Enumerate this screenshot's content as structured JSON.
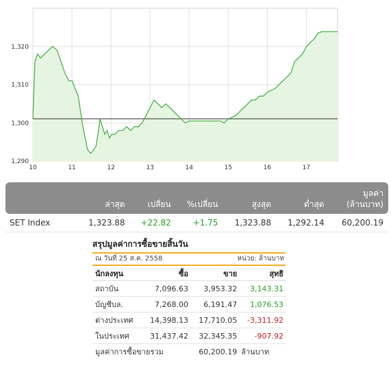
{
  "chart_data": {
    "type": "line",
    "series": [
      {
        "points": [
          [
            10.0,
            1301
          ],
          [
            10.05,
            1316
          ],
          [
            10.12,
            1318
          ],
          [
            10.2,
            1317
          ],
          [
            10.3,
            1318
          ],
          [
            10.4,
            1319
          ],
          [
            10.5,
            1320
          ],
          [
            10.62,
            1319
          ],
          [
            10.72,
            1316
          ],
          [
            10.82,
            1313
          ],
          [
            10.92,
            1311
          ],
          [
            11.0,
            1311
          ],
          [
            11.08,
            1309
          ],
          [
            11.16,
            1307
          ],
          [
            11.22,
            1303
          ],
          [
            11.28,
            1299
          ],
          [
            11.34,
            1296
          ],
          [
            11.4,
            1293
          ],
          [
            11.48,
            1292
          ],
          [
            11.56,
            1293
          ],
          [
            11.62,
            1294
          ],
          [
            11.68,
            1298
          ],
          [
            11.72,
            1301
          ],
          [
            11.78,
            1299
          ],
          [
            11.84,
            1297
          ],
          [
            11.9,
            1298
          ],
          [
            11.96,
            1296
          ],
          [
            12.02,
            1297
          ],
          [
            12.1,
            1297
          ],
          [
            12.2,
            1298
          ],
          [
            12.3,
            1298
          ],
          [
            12.4,
            1299
          ],
          [
            12.5,
            1298
          ],
          [
            12.6,
            1299
          ],
          [
            12.7,
            1299
          ],
          [
            12.8,
            1300
          ],
          [
            12.9,
            1302
          ],
          [
            13.0,
            1304
          ],
          [
            13.1,
            1306
          ],
          [
            13.2,
            1305
          ],
          [
            13.3,
            1304
          ],
          [
            13.4,
            1305
          ],
          [
            13.5,
            1304
          ],
          [
            13.6,
            1303
          ],
          [
            13.7,
            1302
          ],
          [
            13.8,
            1301
          ],
          [
            13.9,
            1300
          ],
          [
            14.0,
            1300.5
          ],
          [
            14.1,
            1300.5
          ],
          [
            14.2,
            1300.5
          ],
          [
            14.3,
            1300.5
          ],
          [
            14.4,
            1300.5
          ],
          [
            14.5,
            1300.5
          ],
          [
            14.6,
            1300.5
          ],
          [
            14.7,
            1300.5
          ],
          [
            14.8,
            1300.5
          ],
          [
            14.9,
            1300
          ],
          [
            15.0,
            1301
          ],
          [
            15.1,
            1301.5
          ],
          [
            15.2,
            1302
          ],
          [
            15.3,
            1303
          ],
          [
            15.4,
            1304
          ],
          [
            15.5,
            1305
          ],
          [
            15.6,
            1306
          ],
          [
            15.7,
            1306
          ],
          [
            15.8,
            1307
          ],
          [
            15.9,
            1307
          ],
          [
            16.0,
            1308
          ],
          [
            16.1,
            1308.5
          ],
          [
            16.2,
            1309
          ],
          [
            16.3,
            1310
          ],
          [
            16.4,
            1311
          ],
          [
            16.5,
            1312
          ],
          [
            16.6,
            1313
          ],
          [
            16.7,
            1316
          ],
          [
            16.8,
            1317
          ],
          [
            16.9,
            1318
          ],
          [
            17.0,
            1320
          ],
          [
            17.1,
            1321
          ],
          [
            17.2,
            1322
          ],
          [
            17.3,
            1323.5
          ],
          [
            17.4,
            1323.88
          ],
          [
            17.5,
            1323.88
          ],
          [
            17.6,
            1323.88
          ],
          [
            17.7,
            1323.88
          ],
          [
            17.8,
            1323.88
          ]
        ]
      }
    ],
    "previous_close": 1301.06,
    "ylim": [
      1290,
      1330
    ],
    "yticks": [
      "1,290",
      "1,300",
      "1,310",
      "1,320"
    ],
    "xticks": [
      {
        "label": "10",
        "at": 10
      },
      {
        "label": "11",
        "at": 11
      },
      {
        "label": "12",
        "at": 12
      },
      {
        "label": "13",
        "at": 13
      },
      {
        "label": "14",
        "at": 14
      },
      {
        "label": "15",
        "at": 15
      },
      {
        "label": "16",
        "at": 16
      },
      {
        "label": "17",
        "at": 17
      }
    ],
    "grid": true,
    "line_color": "#4caf50",
    "fill_color": "#e6f5e1"
  },
  "summary": {
    "headers": [
      "",
      "ล่าสุด",
      "เปลี่ยน",
      "%เปลี่ยน",
      "สูงสุด",
      "ต่ำสุด",
      "มูลค่า\n(ล้านบาท)"
    ],
    "header_line2": "(ล้านบาท)",
    "header_line1": "มูลค่า",
    "row": {
      "name": "SET Index",
      "last": "1,323.88",
      "change": "+22.82",
      "pct_change": "+1.75",
      "high": "1,323.88",
      "low": "1,292.14",
      "value": "60,200.19"
    }
  },
  "investor": {
    "title": "สรุปมูลค่าการซื้อขายสิ้นวัน",
    "date_label": "ณ  วันที่  25 ส.ค. 2558",
    "unit_label": "หน่วย: ล้านบาท",
    "columns": [
      "นักลงทุน",
      "ซื้อ",
      "ขาย",
      "สุทธิ"
    ],
    "rows": [
      {
        "type": "สถาบัน",
        "buy": "7,096.63",
        "sell": "3,953.32",
        "net": "3,143.31",
        "dir": "up"
      },
      {
        "type": "บัญชีบล.",
        "buy": "7,268.00",
        "sell": "6,191.47",
        "net": "1,076.53",
        "dir": "up"
      },
      {
        "type": "ต่างประเทศ",
        "buy": "14,398.13",
        "sell": "17,710.05",
        "net": "-3,311.92",
        "dir": "down"
      },
      {
        "type": "ในประเทศ",
        "buy": "31,437.42",
        "sell": "32,345.35",
        "net": "-907.92",
        "dir": "down"
      }
    ],
    "total_label": "มูลค่าการซื้อขายรวม",
    "total_value": "60,200.19",
    "total_unit": "ล้านบาท"
  },
  "colors": {
    "header_bg": "#8c8c8c",
    "up": "#2a9a2a",
    "down": "#c02020",
    "accent_rule": "#f0b020"
  }
}
